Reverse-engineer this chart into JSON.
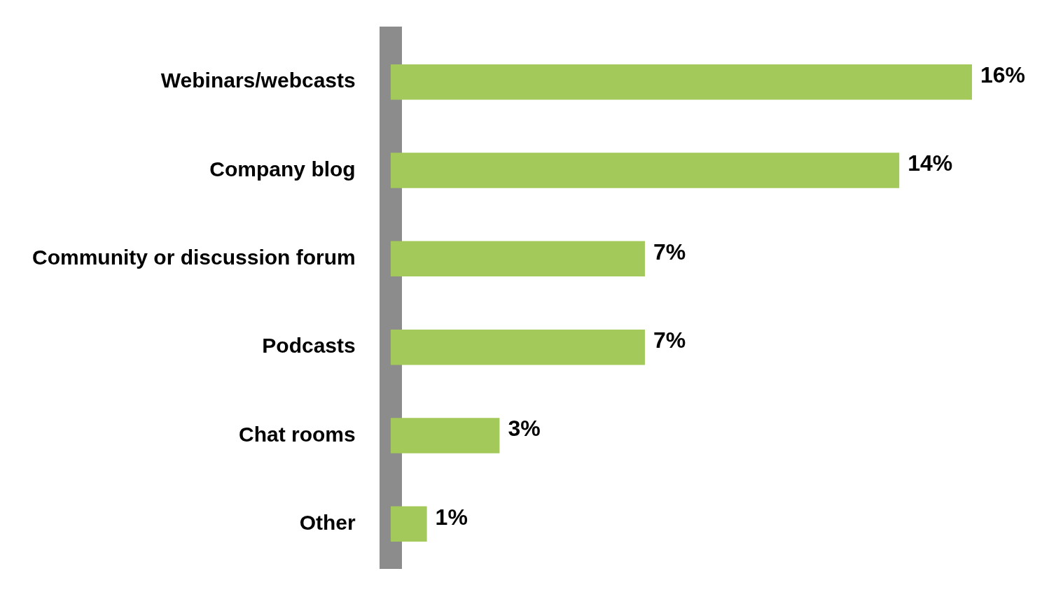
{
  "chart_data": {
    "type": "bar",
    "orientation": "horizontal",
    "categories": [
      "Webinars/webcasts",
      "Company blog",
      "Community or discussion forum",
      "Podcasts",
      "Chat rooms",
      "Other"
    ],
    "values": [
      16,
      14,
      7,
      7,
      3,
      1
    ],
    "color": "#a2c95a",
    "xlim": [
      0,
      16
    ],
    "data_labels": true,
    "value_labels": [
      "16%",
      "14%",
      "7%",
      "7%",
      "3%",
      "1%"
    ],
    "legend": false
  }
}
